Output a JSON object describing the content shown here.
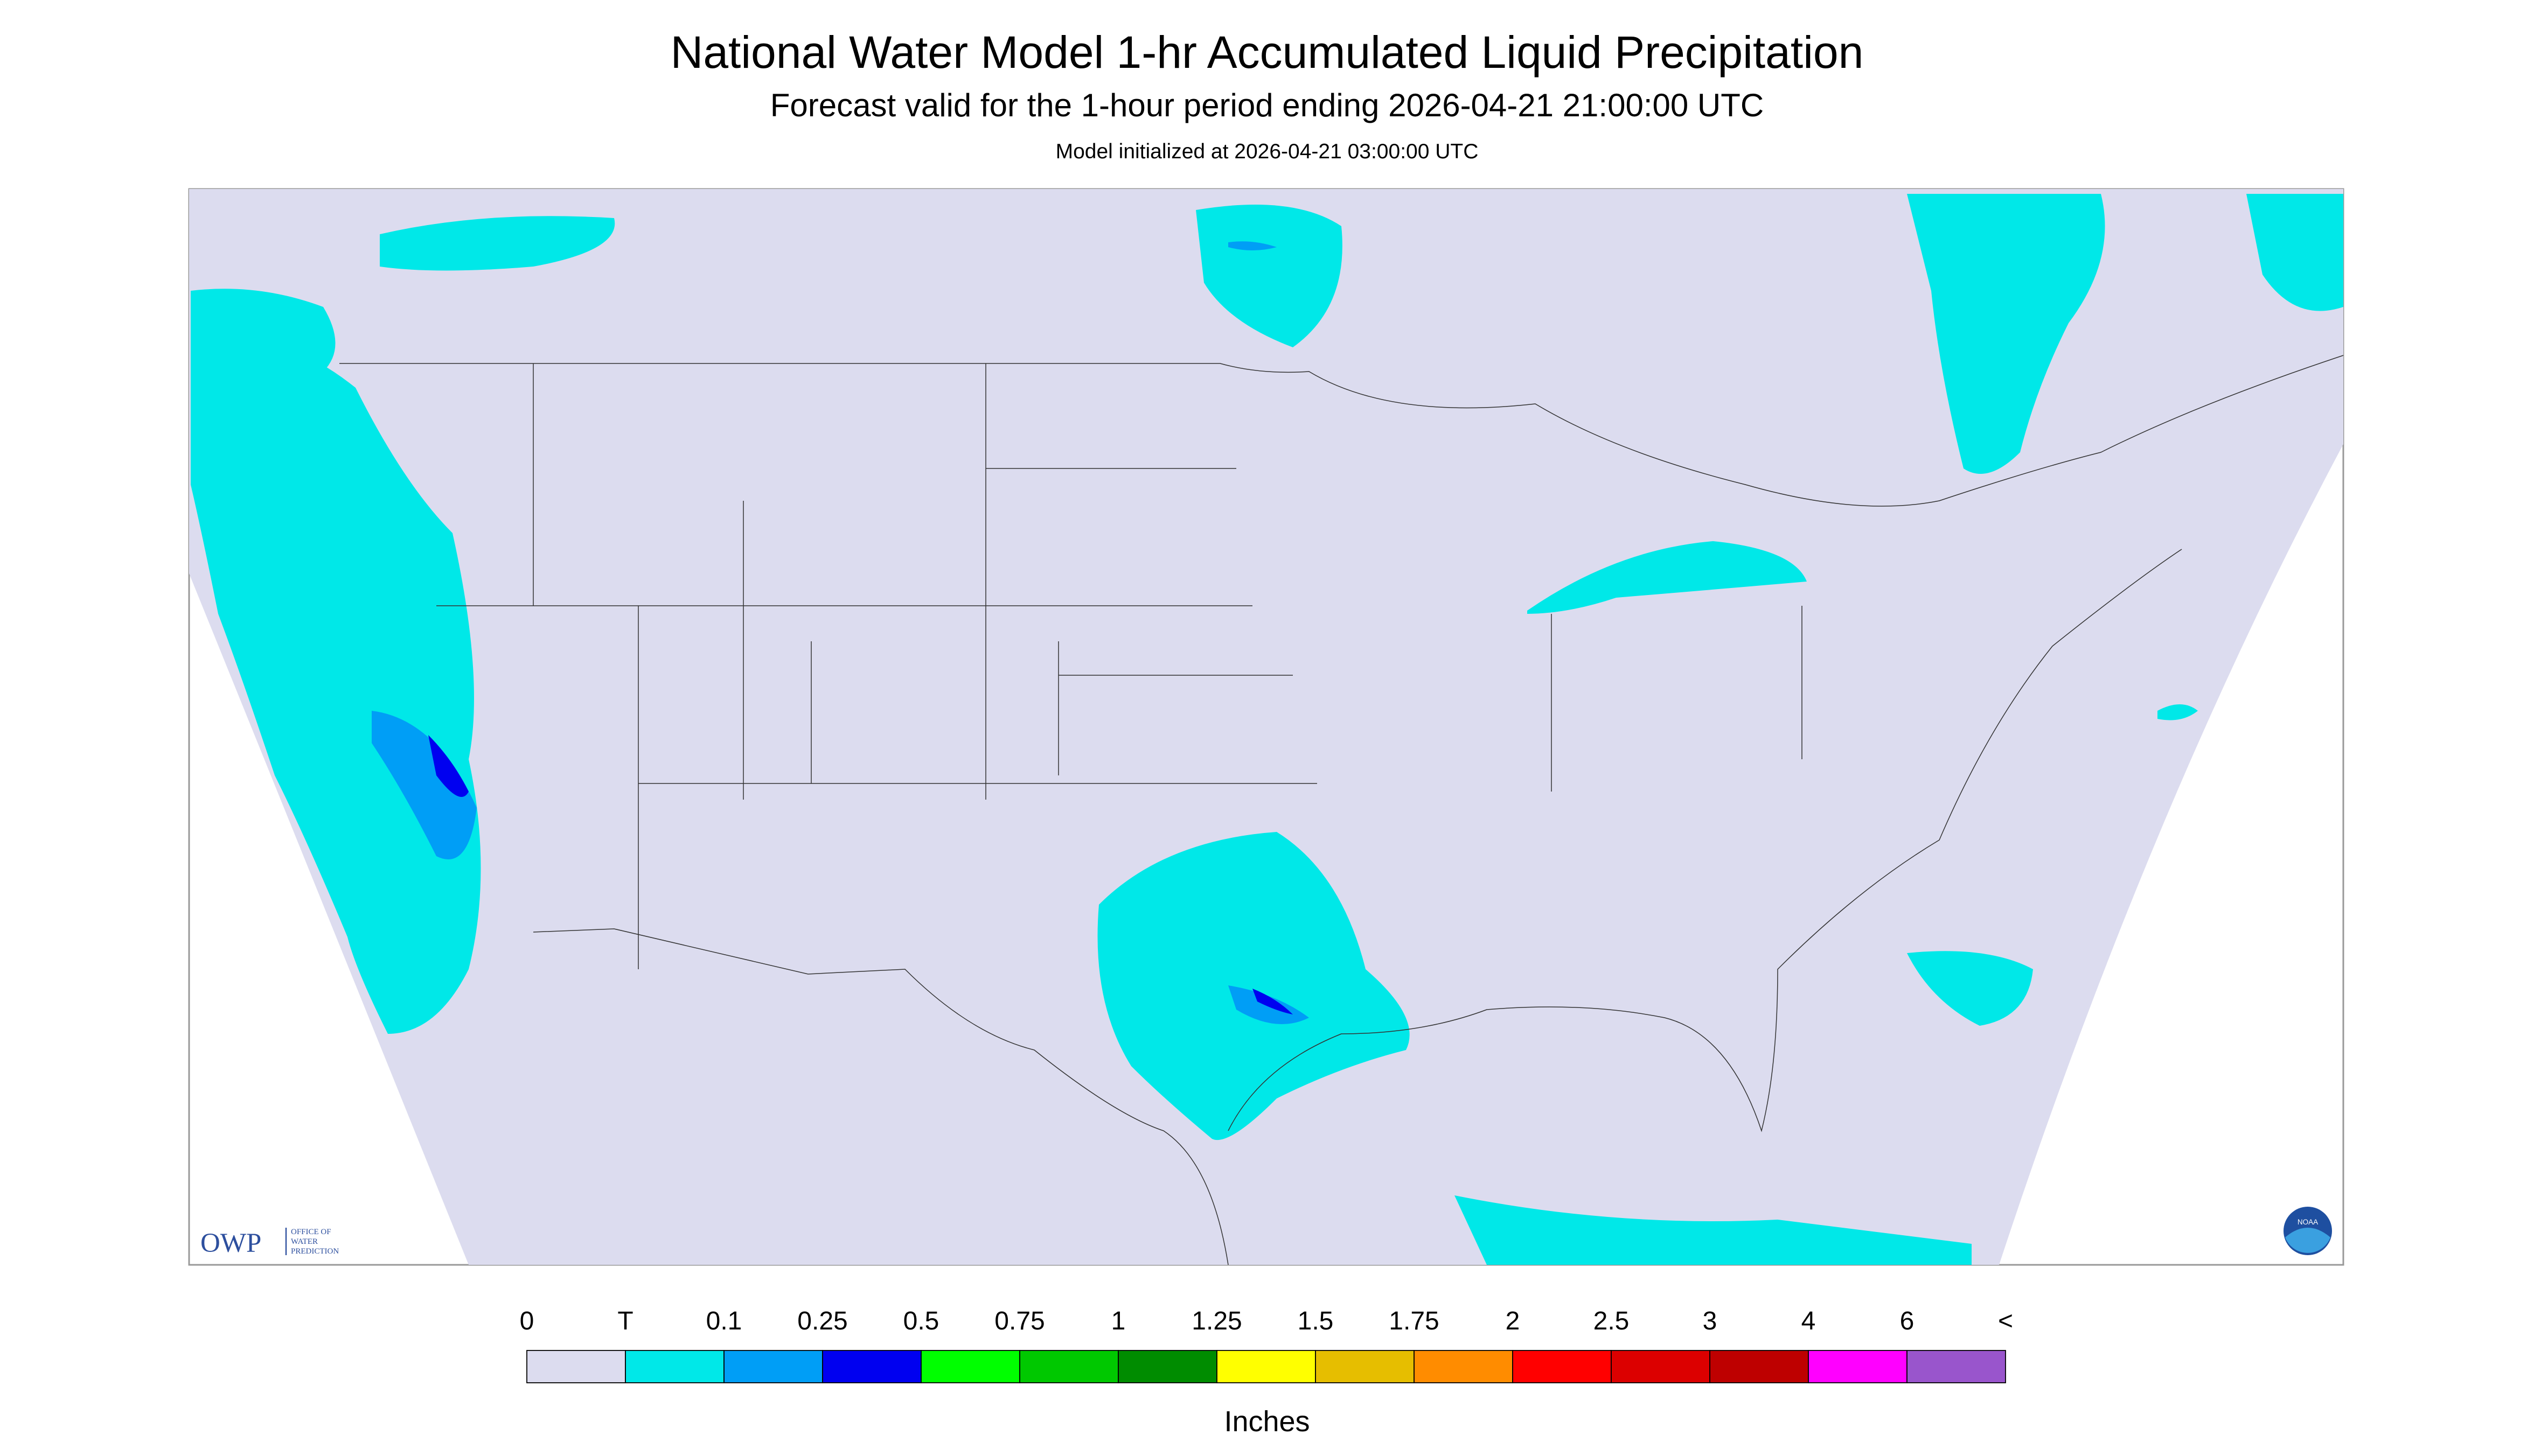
{
  "header": {
    "title": "National Water Model 1-hr Accumulated Liquid Precipitation",
    "subtitle": "Forecast valid for the 1-hour period ending 2026-04-21 21:00:00 UTC",
    "init": "Model initialized at 2026-04-21 03:00:00 UTC"
  },
  "legend": {
    "labels": [
      "0",
      "T",
      "0.1",
      "0.25",
      "0.5",
      "0.75",
      "1",
      "1.25",
      "1.5",
      "1.75",
      "2",
      "2.5",
      "3",
      "4",
      "6",
      "<"
    ],
    "colors": [
      "#dcdcef",
      "#00e8e8",
      "#009ef6",
      "#0000f0",
      "#00ff00",
      "#00c800",
      "#008c00",
      "#ffff00",
      "#e6be00",
      "#ff8c00",
      "#ff0000",
      "#dc0000",
      "#be0000",
      "#ff00ff",
      "#9955cc"
    ],
    "unit": "Inches"
  },
  "logos": {
    "owp": "OWP",
    "owp_lines": [
      "OFFICE OF",
      "WATER",
      "PREDICTION"
    ],
    "noaa": "NOAA"
  }
}
